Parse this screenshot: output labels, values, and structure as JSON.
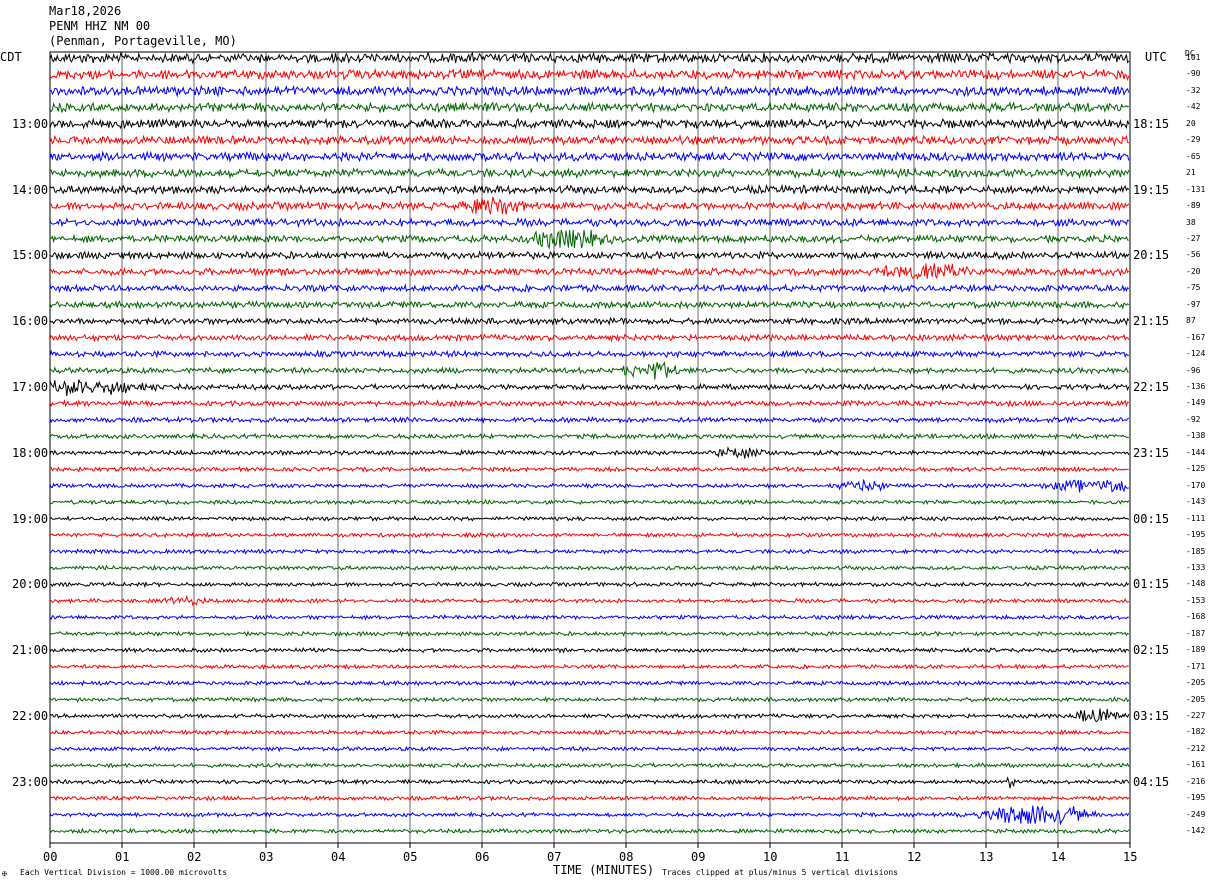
{
  "header": {
    "date": "Mar18,2026",
    "station": "PENM HHZ NM 00",
    "location": "(Penman, Portageville, MO)"
  },
  "left_tz": "CDT",
  "right_tz": "UTC",
  "dc_header": "DC",
  "footer": {
    "scale_note": "Each Vertical Division = 1000.00 microvolts",
    "clip_note": "Traces clipped at plus/minus 5 vertical divisions",
    "corner_mark": "✠"
  },
  "colors": [
    "#000000",
    "#ff0000",
    "#0000ff",
    "#006400"
  ],
  "chart_data": {
    "type": "line",
    "title": "",
    "xlabel": "TIME (MINUTES)",
    "xlim": [
      0,
      15
    ],
    "x_ticks": [
      "00",
      "01",
      "02",
      "03",
      "04",
      "05",
      "06",
      "07",
      "08",
      "09",
      "10",
      "11",
      "12",
      "13",
      "14",
      "15"
    ],
    "grid": true,
    "trace_count": 48,
    "trace_minutes": 15,
    "left_hour_labels": [
      {
        "trace": 4,
        "label": "13:00"
      },
      {
        "trace": 8,
        "label": "14:00"
      },
      {
        "trace": 12,
        "label": "15:00"
      },
      {
        "trace": 16,
        "label": "16:00"
      },
      {
        "trace": 20,
        "label": "17:00"
      },
      {
        "trace": 24,
        "label": "18:00"
      },
      {
        "trace": 28,
        "label": "19:00"
      },
      {
        "trace": 32,
        "label": "20:00"
      },
      {
        "trace": 36,
        "label": "21:00"
      },
      {
        "trace": 40,
        "label": "22:00"
      },
      {
        "trace": 44,
        "label": "23:00"
      }
    ],
    "right_hour_labels": [
      {
        "trace": 4,
        "label": "18:15"
      },
      {
        "trace": 8,
        "label": "19:15"
      },
      {
        "trace": 12,
        "label": "20:15"
      },
      {
        "trace": 16,
        "label": "21:15"
      },
      {
        "trace": 20,
        "label": "22:15"
      },
      {
        "trace": 24,
        "label": "23:15"
      },
      {
        "trace": 28,
        "label": "00:15"
      },
      {
        "trace": 32,
        "label": "01:15"
      },
      {
        "trace": 36,
        "label": "02:15"
      },
      {
        "trace": 40,
        "label": "03:15"
      },
      {
        "trace": 44,
        "label": "04:15"
      }
    ],
    "dc_offsets": [
      "101",
      "-90",
      "-32",
      "-42",
      "20",
      "-29",
      "-65",
      "21",
      "-131",
      "-89",
      "38",
      "-27",
      "-56",
      "-20",
      "-75",
      "-97",
      "87",
      "-167",
      "-124",
      "-96",
      "-136",
      "-149",
      "-92",
      "-138",
      "-144",
      "-125",
      "-170",
      "-143",
      "-111",
      "-195",
      "-185",
      "-133",
      "-148",
      "-153",
      "-168",
      "-187",
      "-189",
      "-171",
      "-205",
      "-205",
      "-227",
      "-182",
      "-212",
      "-161",
      "-216",
      "-195",
      "-249",
      "-142"
    ],
    "bursts": [
      {
        "trace": 9,
        "minute": 6.15,
        "amp": 2.2,
        "dur": 0.5
      },
      {
        "trace": 11,
        "minute": 7.2,
        "amp": 2.4,
        "dur": 0.7
      },
      {
        "trace": 13,
        "minute": 12.2,
        "amp": 2.0,
        "dur": 0.9
      },
      {
        "trace": 19,
        "minute": 8.4,
        "amp": 1.8,
        "dur": 0.6
      },
      {
        "trace": 20,
        "minute": 0.3,
        "amp": 2.0,
        "dur": 1.3
      },
      {
        "trace": 24,
        "minute": 9.6,
        "amp": 1.0,
        "dur": 0.5
      },
      {
        "trace": 26,
        "minute": 11.3,
        "amp": 1.2,
        "dur": 0.5
      },
      {
        "trace": 26,
        "minute": 14.6,
        "amp": 1.8,
        "dur": 0.9
      },
      {
        "trace": 33,
        "minute": 1.85,
        "amp": 1.0,
        "dur": 0.4
      },
      {
        "trace": 40,
        "minute": 14.55,
        "amp": 2.2,
        "dur": 0.4
      },
      {
        "trace": 44,
        "minute": 13.35,
        "amp": 1.2,
        "dur": 0.1
      },
      {
        "trace": 46,
        "minute": 13.7,
        "amp": 3.5,
        "dur": 0.9
      }
    ]
  }
}
